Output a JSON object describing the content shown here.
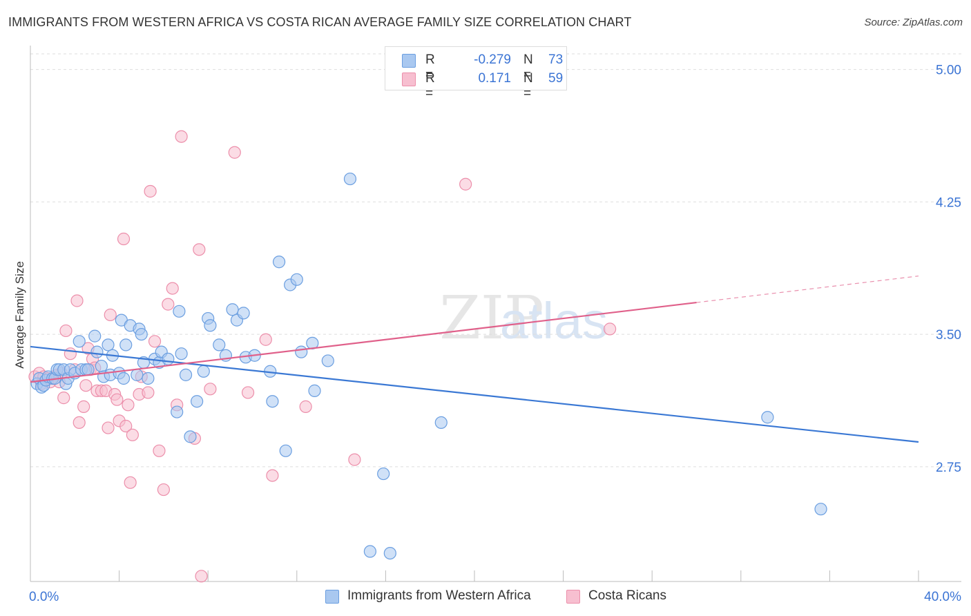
{
  "title": "IMMIGRANTS FROM WESTERN AFRICA VS COSTA RICAN AVERAGE FAMILY SIZE CORRELATION CHART",
  "source": "Source: ZipAtlas.com",
  "watermark": {
    "zip": "ZIP",
    "atlas": "atlas"
  },
  "legend": {
    "r_label": "R =",
    "n_label": "N =",
    "rows": [
      {
        "r": "-0.279",
        "n": "73"
      },
      {
        "r": "0.171",
        "n": "59"
      }
    ]
  },
  "colors": {
    "blue_fill": "#a9c8f0",
    "blue_stroke": "#6a9ee0",
    "blue_line": "#3a78d4",
    "pink_fill": "#f7bfd0",
    "pink_stroke": "#ec8eaa",
    "pink_line": "#e0608a",
    "tick_text": "#3b74d4",
    "grid": "#dddddd"
  },
  "chart_data": {
    "type": "scatter",
    "title": "IMMIGRANTS FROM WESTERN AFRICA VS COSTA RICAN AVERAGE FAMILY SIZE CORRELATION CHART",
    "xlabel": "",
    "ylabel": "Average Family Size",
    "xlim": [
      0,
      40
    ],
    "ylim": [
      2.1,
      5.1
    ],
    "x_tick_labels": [
      "0.0%",
      "40.0%"
    ],
    "y_ticks": [
      2.75,
      3.5,
      4.25,
      5.0
    ],
    "y_tick_labels": [
      "2.75",
      "3.50",
      "4.25",
      "5.00"
    ],
    "grid": "horizontal dashed",
    "legend_position": "top-center",
    "series": [
      {
        "name": "Immigrants from Western Africa",
        "color": "#6a9ee0",
        "trend": {
          "x": [
            0,
            40
          ],
          "y": [
            3.43,
            2.89
          ]
        },
        "points": [
          [
            0.3,
            3.22
          ],
          [
            0.4,
            3.25
          ],
          [
            0.5,
            3.2
          ],
          [
            0.6,
            3.21
          ],
          [
            0.7,
            3.24
          ],
          [
            0.8,
            3.26
          ],
          [
            1.0,
            3.25
          ],
          [
            1.1,
            3.25
          ],
          [
            1.2,
            3.3
          ],
          [
            1.3,
            3.3
          ],
          [
            1.5,
            3.3
          ],
          [
            1.6,
            3.22
          ],
          [
            1.7,
            3.25
          ],
          [
            1.8,
            3.3
          ],
          [
            2.0,
            3.28
          ],
          [
            2.2,
            3.46
          ],
          [
            2.3,
            3.3
          ],
          [
            2.5,
            3.3
          ],
          [
            2.6,
            3.3
          ],
          [
            2.9,
            3.49
          ],
          [
            3.0,
            3.4
          ],
          [
            3.2,
            3.32
          ],
          [
            3.3,
            3.26
          ],
          [
            3.5,
            3.44
          ],
          [
            3.6,
            3.27
          ],
          [
            3.7,
            3.38
          ],
          [
            4.0,
            3.28
          ],
          [
            4.1,
            3.58
          ],
          [
            4.2,
            3.25
          ],
          [
            4.3,
            3.44
          ],
          [
            4.5,
            3.55
          ],
          [
            4.8,
            3.27
          ],
          [
            4.9,
            3.53
          ],
          [
            5.0,
            3.5
          ],
          [
            5.1,
            3.34
          ],
          [
            5.3,
            3.25
          ],
          [
            5.6,
            3.36
          ],
          [
            5.8,
            3.34
          ],
          [
            5.9,
            3.4
          ],
          [
            6.2,
            3.36
          ],
          [
            6.6,
            3.06
          ],
          [
            6.7,
            3.63
          ],
          [
            6.8,
            3.39
          ],
          [
            7.0,
            3.27
          ],
          [
            7.2,
            2.92
          ],
          [
            7.5,
            3.12
          ],
          [
            7.8,
            3.29
          ],
          [
            8.0,
            3.59
          ],
          [
            8.1,
            3.55
          ],
          [
            8.5,
            3.44
          ],
          [
            8.8,
            3.38
          ],
          [
            9.1,
            3.64
          ],
          [
            9.3,
            3.58
          ],
          [
            9.6,
            3.62
          ],
          [
            9.7,
            3.37
          ],
          [
            10.1,
            3.38
          ],
          [
            10.9,
            3.12
          ],
          [
            10.8,
            3.29
          ],
          [
            11.2,
            3.91
          ],
          [
            11.5,
            2.84
          ],
          [
            11.7,
            3.78
          ],
          [
            12.0,
            3.81
          ],
          [
            12.2,
            3.4
          ],
          [
            12.7,
            3.45
          ],
          [
            12.8,
            3.18
          ],
          [
            13.4,
            3.35
          ],
          [
            14.4,
            4.38
          ],
          [
            15.3,
            2.27
          ],
          [
            15.9,
            2.71
          ],
          [
            16.2,
            2.26
          ],
          [
            18.5,
            3.0
          ],
          [
            33.2,
            3.03
          ],
          [
            35.6,
            2.51
          ]
        ]
      },
      {
        "name": "Costa Ricans",
        "color": "#ec8eaa",
        "trend": {
          "x": [
            0,
            30
          ],
          "y": [
            3.23,
            3.68
          ],
          "dashed_to": {
            "x": 40,
            "y": 3.83
          }
        },
        "points": [
          [
            0.2,
            3.26
          ],
          [
            0.4,
            3.28
          ],
          [
            0.5,
            3.22
          ],
          [
            0.6,
            3.26
          ],
          [
            0.8,
            3.25
          ],
          [
            0.9,
            3.23
          ],
          [
            1.0,
            3.25
          ],
          [
            1.1,
            3.25
          ],
          [
            1.2,
            3.27
          ],
          [
            1.3,
            3.23
          ],
          [
            1.4,
            3.28
          ],
          [
            1.5,
            3.14
          ],
          [
            1.6,
            3.52
          ],
          [
            1.8,
            3.39
          ],
          [
            2.0,
            3.3
          ],
          [
            2.1,
            3.69
          ],
          [
            2.2,
            3.0
          ],
          [
            2.4,
            3.09
          ],
          [
            2.5,
            3.21
          ],
          [
            2.6,
            3.42
          ],
          [
            2.7,
            3.3
          ],
          [
            2.8,
            3.36
          ],
          [
            2.9,
            3.31
          ],
          [
            3.0,
            3.18
          ],
          [
            3.2,
            3.18
          ],
          [
            3.4,
            3.18
          ],
          [
            3.5,
            2.97
          ],
          [
            3.6,
            3.61
          ],
          [
            3.8,
            3.16
          ],
          [
            3.9,
            3.13
          ],
          [
            4.0,
            3.01
          ],
          [
            4.2,
            4.04
          ],
          [
            4.3,
            2.98
          ],
          [
            4.4,
            3.1
          ],
          [
            4.5,
            2.66
          ],
          [
            4.6,
            2.93
          ],
          [
            4.9,
            3.16
          ],
          [
            5.0,
            3.26
          ],
          [
            5.3,
            3.17
          ],
          [
            5.4,
            4.31
          ],
          [
            5.6,
            3.46
          ],
          [
            5.8,
            2.84
          ],
          [
            6.0,
            2.62
          ],
          [
            6.2,
            3.67
          ],
          [
            6.4,
            3.76
          ],
          [
            6.6,
            3.1
          ],
          [
            6.8,
            4.62
          ],
          [
            7.4,
            2.91
          ],
          [
            7.6,
            3.98
          ],
          [
            7.7,
            2.13
          ],
          [
            8.1,
            3.19
          ],
          [
            9.2,
            4.53
          ],
          [
            9.8,
            3.17
          ],
          [
            10.6,
            3.47
          ],
          [
            10.9,
            2.7
          ],
          [
            12.4,
            3.09
          ],
          [
            14.6,
            2.79
          ],
          [
            19.6,
            4.35
          ],
          [
            26.1,
            3.53
          ]
        ]
      }
    ]
  },
  "bottom_legend": {
    "items": [
      "Immigrants from Western Africa",
      "Costa Ricans"
    ]
  }
}
